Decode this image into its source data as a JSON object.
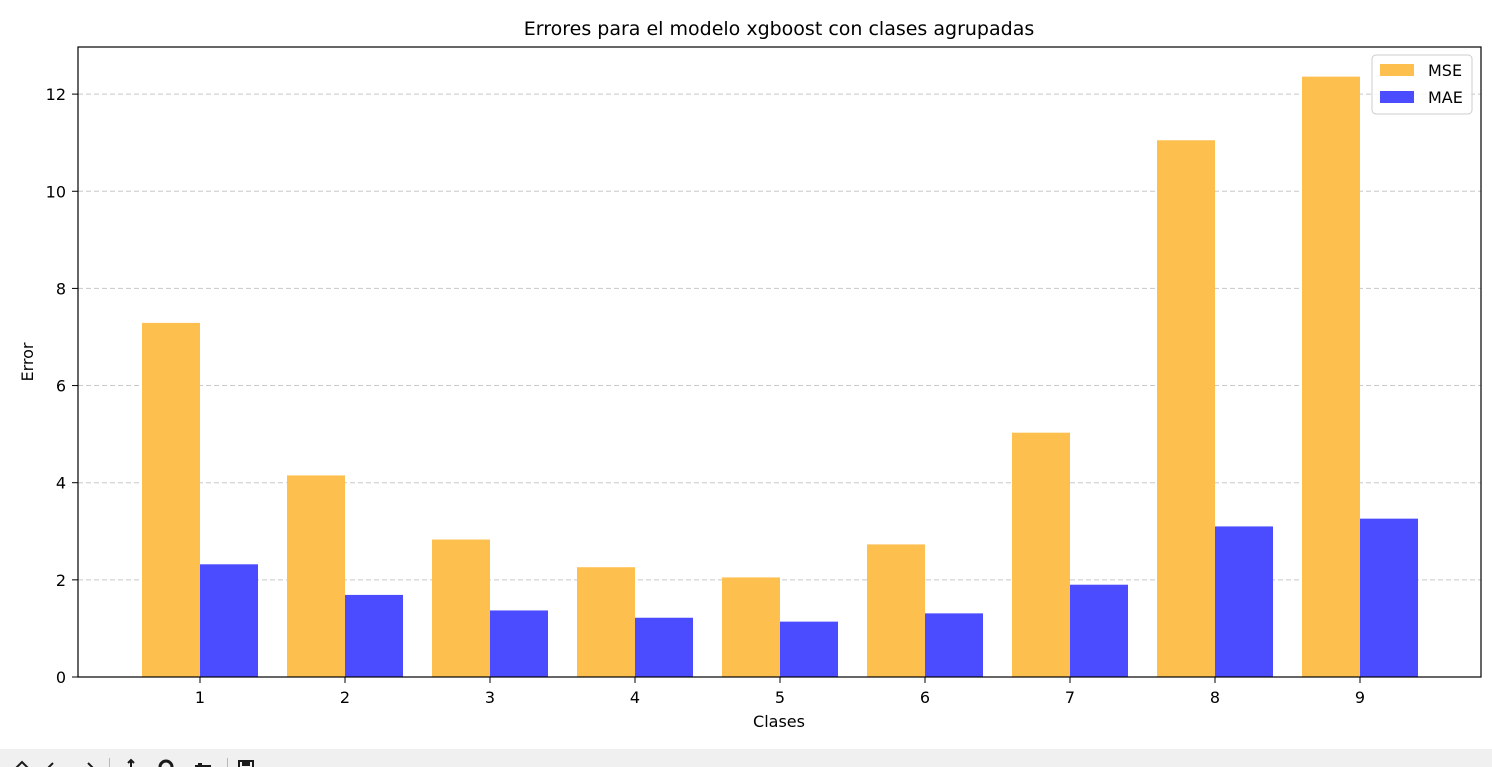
{
  "chart_data": {
    "type": "bar",
    "title": "Errores para el modelo xgboost con clases agrupadas",
    "xlabel": "Clases",
    "ylabel": "Error",
    "categories": [
      "1",
      "2",
      "3",
      "4",
      "5",
      "6",
      "7",
      "8",
      "9"
    ],
    "series": [
      {
        "name": "MSE",
        "color": "#fdbf4e",
        "values": [
          7.29,
          4.15,
          2.83,
          2.26,
          2.05,
          2.73,
          5.03,
          11.05,
          12.36
        ]
      },
      {
        "name": "MAE",
        "color": "#4b4bff",
        "values": [
          2.32,
          1.69,
          1.37,
          1.22,
          1.14,
          1.31,
          1.9,
          3.1,
          3.26
        ]
      }
    ],
    "ylim": [
      0,
      12.97
    ],
    "yticks": [
      "0",
      "2",
      "4",
      "6",
      "8",
      "10",
      "12"
    ],
    "grid": "y-dashed",
    "legend_position": "top-right"
  },
  "toolbar": {
    "buttons": [
      "home-icon",
      "back-icon",
      "forward-icon",
      "pan-icon",
      "zoom-icon",
      "configure-subplots-icon",
      "save-icon"
    ]
  }
}
